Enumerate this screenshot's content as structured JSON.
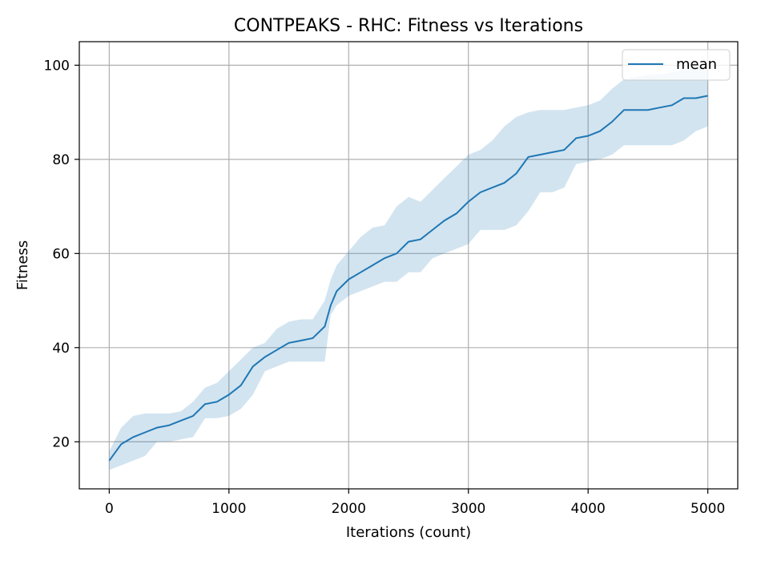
{
  "chart_data": {
    "type": "line",
    "title": "CONTPEAKS - RHC: Fitness vs Iterations",
    "xlabel": "Iterations (count)",
    "ylabel": "Fitness",
    "xlim": [
      -250,
      5250
    ],
    "ylim": [
      10,
      105
    ],
    "xticks": [
      "0",
      "1000",
      "2000",
      "3000",
      "4000",
      "5000"
    ],
    "yticks": [
      "20",
      "40",
      "60",
      "80",
      "100"
    ],
    "grid": true,
    "legend": {
      "position": "top-right",
      "entries": [
        "mean"
      ]
    },
    "colors": {
      "line": "#1f77b4",
      "band": "#1f77b4",
      "grid": "#b0b0b0"
    },
    "series": [
      {
        "name": "mean",
        "x": [
          0,
          100,
          200,
          300,
          400,
          500,
          600,
          700,
          800,
          900,
          1000,
          1100,
          1200,
          1300,
          1400,
          1500,
          1600,
          1700,
          1800,
          1850,
          1900,
          2000,
          2100,
          2200,
          2300,
          2400,
          2500,
          2600,
          2700,
          2800,
          2900,
          3000,
          3100,
          3200,
          3300,
          3400,
          3500,
          3600,
          3700,
          3800,
          3900,
          4000,
          4100,
          4200,
          4300,
          4400,
          4500,
          4600,
          4700,
          4800,
          4900,
          5000
        ],
        "y": [
          16,
          19.5,
          21,
          22,
          23,
          23.5,
          24.5,
          25.5,
          28,
          28.5,
          30,
          32,
          36,
          38,
          39.5,
          41,
          41.5,
          42,
          44.5,
          49,
          52,
          54.5,
          56,
          57.5,
          59,
          60,
          62.5,
          63,
          65,
          67,
          68.5,
          71,
          73,
          74,
          75,
          77,
          80.5,
          81,
          81.5,
          82,
          84.5,
          85,
          86,
          88,
          90.5,
          90.5,
          90.5,
          91,
          91.5,
          93,
          93,
          93.5
        ],
        "lower": [
          14,
          15,
          16,
          17,
          20,
          20,
          20.5,
          21,
          25,
          25,
          25.5,
          27,
          30,
          35,
          36,
          37,
          37,
          37,
          37,
          47,
          49,
          51,
          52,
          53,
          54,
          54,
          56,
          56,
          59,
          60,
          61,
          62,
          65,
          65,
          65,
          66,
          69,
          73,
          73,
          74,
          79,
          79.5,
          80,
          81,
          83,
          83,
          83,
          83,
          83,
          84,
          86,
          87
        ],
        "upper": [
          18,
          23,
          25.5,
          26,
          26,
          26,
          26.5,
          28.5,
          31.5,
          32.5,
          35,
          37.5,
          40,
          41,
          44,
          45.5,
          46,
          46,
          50,
          54.5,
          57.5,
          60.5,
          63.5,
          65.5,
          66,
          70,
          72,
          71,
          73.5,
          76,
          78.5,
          81,
          82,
          84,
          87,
          89,
          90,
          90.5,
          90.5,
          90.5,
          91,
          91.5,
          92.5,
          95,
          97,
          97.5,
          98,
          98,
          98.5,
          99,
          99.5,
          100
        ]
      }
    ]
  }
}
